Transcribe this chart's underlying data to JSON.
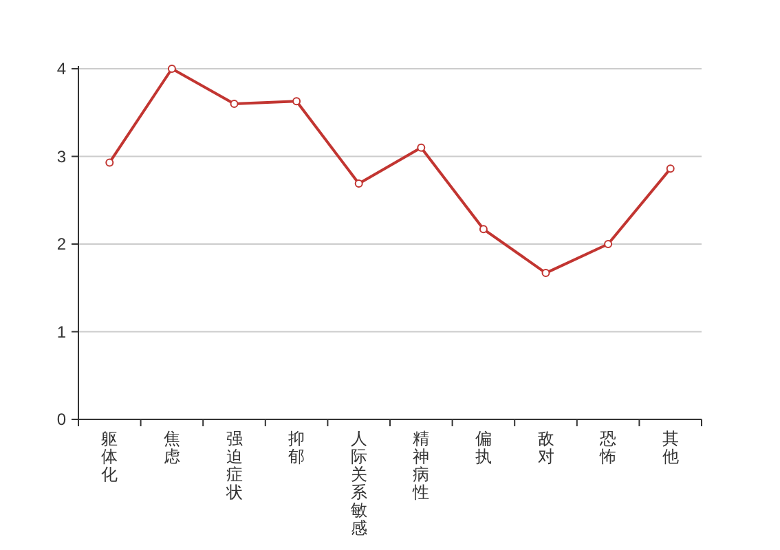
{
  "chart_data": {
    "type": "line",
    "categories": [
      "躯体化",
      "焦虑",
      "强迫症状",
      "抑郁",
      "人际关系敏感",
      "精神病性",
      "偏执",
      "敌对",
      "恐怖",
      "其他"
    ],
    "series": [
      {
        "color": "#c23531",
        "values": [
          2.93,
          4.0,
          3.6,
          3.63,
          2.69,
          3.1,
          2.17,
          1.67,
          2.0,
          2.86
        ]
      }
    ],
    "ylim": [
      0,
      4
    ],
    "yticks": [
      0,
      1,
      2,
      3,
      4
    ],
    "grid": "y",
    "marker": "circle",
    "line_style": "solid"
  }
}
